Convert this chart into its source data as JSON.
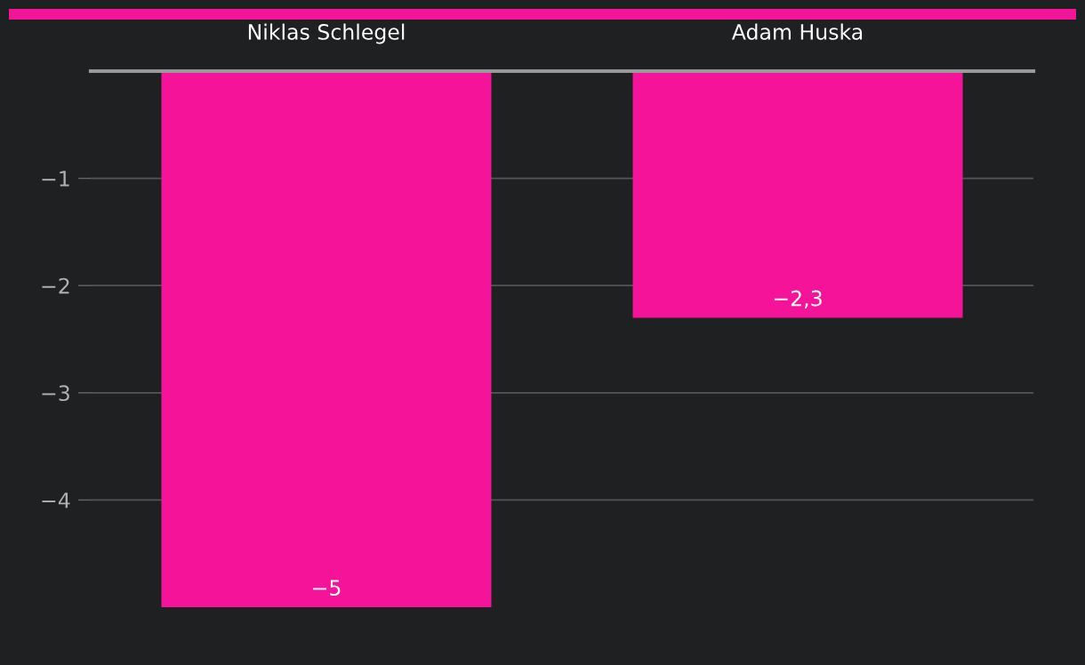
{
  "chart_data": {
    "type": "bar",
    "categories": [
      "Niklas Schlegel",
      "Adam Huska"
    ],
    "values": [
      -5,
      -2.3
    ],
    "value_labels": [
      "−5",
      "−2,3"
    ],
    "color": "#f5139a",
    "ylim": [
      -5,
      0
    ],
    "yticks": [
      {
        "value": -1,
        "label": "−1"
      },
      {
        "value": -2,
        "label": "−2"
      },
      {
        "value": -3,
        "label": "−3"
      },
      {
        "value": -4,
        "label": "−4"
      }
    ],
    "grid": "y"
  }
}
